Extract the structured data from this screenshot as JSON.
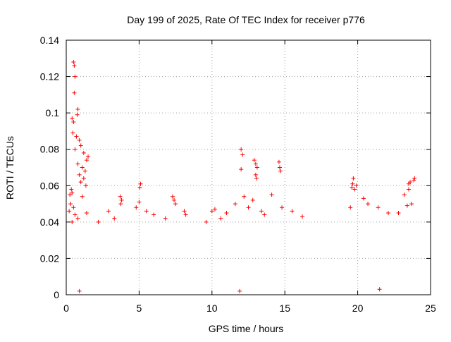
{
  "chart_data": {
    "type": "scatter",
    "title": "Day 199 of 2025, Rate Of TEC Index for receiver p776",
    "xlabel": "GPS time / hours",
    "ylabel": "ROTI / TECUs",
    "xlim": [
      0,
      25
    ],
    "ylim": [
      0,
      0.14
    ],
    "x_ticks": [
      0,
      5,
      10,
      15,
      20,
      25
    ],
    "x_tick_labels": [
      "0",
      "5",
      "10",
      "15",
      "20",
      "25"
    ],
    "y_ticks": [
      0,
      0.02,
      0.04,
      0.06,
      0.08,
      0.1,
      0.12,
      0.14
    ],
    "y_tick_labels": [
      "0",
      "0.02",
      "0.04",
      "0.06",
      "0.08",
      "0.1",
      "0.12",
      "0.14"
    ],
    "grid": true,
    "marker": "plus",
    "marker_color": "#ff0000",
    "series": [
      {
        "name": "ROTI",
        "points": [
          [
            0.5,
            0.128
          ],
          [
            0.55,
            0.126
          ],
          [
            0.6,
            0.12
          ],
          [
            0.55,
            0.111
          ],
          [
            0.8,
            0.102
          ],
          [
            0.75,
            0.099
          ],
          [
            0.4,
            0.097
          ],
          [
            0.5,
            0.095
          ],
          [
            0.45,
            0.089
          ],
          [
            0.7,
            0.087
          ],
          [
            0.9,
            0.085
          ],
          [
            1.0,
            0.082
          ],
          [
            0.6,
            0.08
          ],
          [
            1.2,
            0.078
          ],
          [
            1.5,
            0.076
          ],
          [
            1.4,
            0.074
          ],
          [
            0.8,
            0.072
          ],
          [
            1.1,
            0.07
          ],
          [
            1.3,
            0.068
          ],
          [
            0.9,
            0.066
          ],
          [
            1.2,
            0.064
          ],
          [
            1.0,
            0.062
          ],
          [
            1.35,
            0.06
          ],
          [
            0.35,
            0.058
          ],
          [
            0.4,
            0.056
          ],
          [
            0.25,
            0.055
          ],
          [
            1.1,
            0.054
          ],
          [
            0.3,
            0.05
          ],
          [
            0.5,
            0.048
          ],
          [
            0.2,
            0.046
          ],
          [
            1.4,
            0.045
          ],
          [
            0.6,
            0.044
          ],
          [
            0.8,
            0.042
          ],
          [
            0.4,
            0.04
          ],
          [
            3.7,
            0.054
          ],
          [
            3.8,
            0.052
          ],
          [
            3.75,
            0.05
          ],
          [
            2.9,
            0.046
          ],
          [
            3.3,
            0.042
          ],
          [
            2.2,
            0.04
          ],
          [
            5.1,
            0.061
          ],
          [
            5.05,
            0.059
          ],
          [
            5.0,
            0.051
          ],
          [
            4.8,
            0.048
          ],
          [
            5.5,
            0.046
          ],
          [
            6.0,
            0.044
          ],
          [
            7.3,
            0.054
          ],
          [
            7.5,
            0.05
          ],
          [
            7.4,
            0.052
          ],
          [
            8.1,
            0.046
          ],
          [
            8.2,
            0.044
          ],
          [
            6.8,
            0.042
          ],
          [
            9.6,
            0.04
          ],
          [
            10.2,
            0.047
          ],
          [
            10.0,
            0.046
          ],
          [
            11.0,
            0.045
          ],
          [
            10.6,
            0.042
          ],
          [
            12.0,
            0.08
          ],
          [
            12.1,
            0.077
          ],
          [
            12.0,
            0.069
          ],
          [
            12.9,
            0.074
          ],
          [
            13.0,
            0.072
          ],
          [
            13.1,
            0.07
          ],
          [
            13.0,
            0.066
          ],
          [
            13.05,
            0.064
          ],
          [
            12.2,
            0.054
          ],
          [
            12.8,
            0.052
          ],
          [
            11.6,
            0.05
          ],
          [
            13.4,
            0.046
          ],
          [
            13.6,
            0.044
          ],
          [
            12.5,
            0.048
          ],
          [
            14.6,
            0.073
          ],
          [
            14.65,
            0.07
          ],
          [
            14.7,
            0.068
          ],
          [
            14.1,
            0.055
          ],
          [
            14.8,
            0.048
          ],
          [
            15.5,
            0.046
          ],
          [
            16.2,
            0.043
          ],
          [
            19.7,
            0.064
          ],
          [
            19.65,
            0.061
          ],
          [
            19.6,
            0.059
          ],
          [
            19.9,
            0.06
          ],
          [
            19.8,
            0.058
          ],
          [
            20.4,
            0.053
          ],
          [
            20.7,
            0.05
          ],
          [
            19.5,
            0.048
          ],
          [
            21.4,
            0.048
          ],
          [
            22.1,
            0.045
          ],
          [
            23.6,
            0.062
          ],
          [
            23.5,
            0.061
          ],
          [
            23.9,
            0.064
          ],
          [
            23.85,
            0.063
          ],
          [
            23.5,
            0.058
          ],
          [
            23.2,
            0.055
          ],
          [
            23.7,
            0.05
          ],
          [
            23.4,
            0.049
          ],
          [
            22.8,
            0.045
          ],
          [
            0.9,
            0.002
          ],
          [
            11.9,
            0.002
          ],
          [
            21.5,
            0.003
          ]
        ]
      }
    ]
  }
}
